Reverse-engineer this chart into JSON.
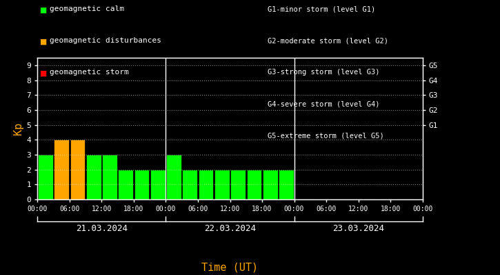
{
  "background_color": "#000000",
  "plot_bg_color": "#000000",
  "text_color": "#ffffff",
  "xlabel_color": "#ffa500",
  "ylabel_color": "#ffa500",
  "xlabel": "Time (UT)",
  "ylabel": "Kp",
  "ylim": [
    0,
    9.5
  ],
  "yticks": [
    0,
    1,
    2,
    3,
    4,
    5,
    6,
    7,
    8,
    9
  ],
  "days": [
    "21.03.2024",
    "22.03.2024",
    "23.03.2024"
  ],
  "bar_data": {
    "day1": {
      "hours": [
        0,
        3,
        6,
        9,
        12,
        15,
        18,
        21
      ],
      "values": [
        3,
        4,
        4,
        3,
        3,
        2,
        2,
        2
      ],
      "colors": [
        "#00ff00",
        "#ffa500",
        "#ffa500",
        "#00ff00",
        "#00ff00",
        "#00ff00",
        "#00ff00",
        "#00ff00"
      ]
    },
    "day2": {
      "hours": [
        0,
        3,
        6,
        9,
        12,
        15,
        18,
        21
      ],
      "values": [
        3,
        2,
        2,
        2,
        2,
        2,
        2,
        2
      ],
      "colors": [
        "#00ff00",
        "#00ff00",
        "#00ff00",
        "#00ff00",
        "#00ff00",
        "#00ff00",
        "#00ff00",
        "#00ff00"
      ]
    },
    "day3": {
      "hours": [],
      "values": [],
      "colors": []
    }
  },
  "legend_items": [
    {
      "label": "geomagnetic calm",
      "color": "#00ff00"
    },
    {
      "label": "geomagnetic disturbances",
      "color": "#ffa500"
    },
    {
      "label": "geomagnetic storm",
      "color": "#ff0000"
    }
  ],
  "right_legend_lines": [
    "G1-minor storm (level G1)",
    "G2-moderate storm (level G2)",
    "G3-strong storm (level G3)",
    "G4-severe storm (level G4)",
    "G5-extreme storm (level G5)"
  ],
  "right_ytick_labels": [
    "G1",
    "G2",
    "G3",
    "G4",
    "G5"
  ],
  "right_ytick_positions": [
    5,
    6,
    7,
    8,
    9
  ],
  "xtick_labels": [
    "00:00",
    "06:00",
    "12:00",
    "18:00",
    "00:00",
    "06:00",
    "12:00",
    "18:00",
    "00:00",
    "06:00",
    "12:00",
    "18:00",
    "00:00"
  ],
  "bar_width": 2.8,
  "font_family": "monospace"
}
